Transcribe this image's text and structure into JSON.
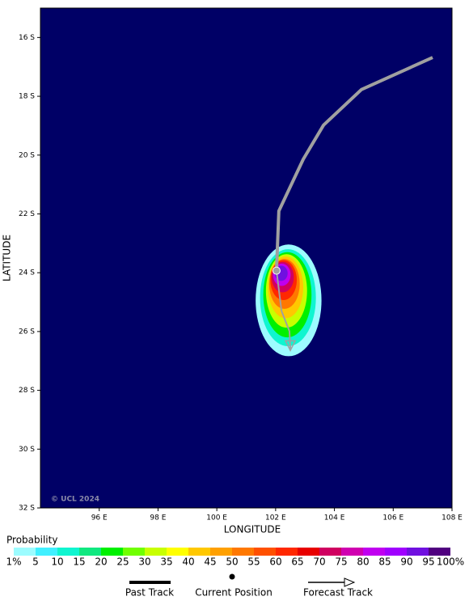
{
  "chart_data": {
    "type": "track_map",
    "xlabel": "LONGITUDE",
    "ylabel": "LATITUDE",
    "copyright": "© UCL 2024",
    "background": "#000066",
    "xlim": [
      94,
      108
    ],
    "ylim": [
      -32,
      -15
    ],
    "xticks": [
      {
        "value": 96,
        "label": "96 E"
      },
      {
        "value": 98,
        "label": "98 E"
      },
      {
        "value": 100,
        "label": "100 E"
      },
      {
        "value": 102,
        "label": "102 E"
      },
      {
        "value": 104,
        "label": "104 E"
      },
      {
        "value": 106,
        "label": "106 E"
      },
      {
        "value": 108,
        "label": "108 E"
      }
    ],
    "yticks": [
      {
        "value": -16,
        "label": "16 S"
      },
      {
        "value": -18,
        "label": "18 S"
      },
      {
        "value": -20,
        "label": "20 S"
      },
      {
        "value": -22,
        "label": "22 S"
      },
      {
        "value": -24,
        "label": "24 S"
      },
      {
        "value": -26,
        "label": "26 S"
      },
      {
        "value": -28,
        "label": "28 S"
      },
      {
        "value": -30,
        "label": "30 S"
      },
      {
        "value": -32,
        "label": "32 S"
      }
    ],
    "contours": [
      {
        "level": 1,
        "lon": 102.44,
        "lat": -24.94,
        "rx": 1.12,
        "ry": 1.9
      },
      {
        "level": 10,
        "lon": 102.42,
        "lat": -24.85,
        "rx": 0.95,
        "ry": 1.65
      },
      {
        "level": 20,
        "lon": 102.4,
        "lat": -24.75,
        "rx": 0.82,
        "ry": 1.45
      },
      {
        "level": 30,
        "lon": 102.37,
        "lat": -24.62,
        "rx": 0.7,
        "ry": 1.25
      },
      {
        "level": 40,
        "lon": 102.34,
        "lat": -24.5,
        "rx": 0.6,
        "ry": 1.05
      },
      {
        "level": 50,
        "lon": 102.3,
        "lat": -24.38,
        "rx": 0.52,
        "ry": 0.85
      },
      {
        "level": 60,
        "lon": 102.27,
        "lat": -24.25,
        "rx": 0.45,
        "ry": 0.68
      },
      {
        "level": 70,
        "lon": 102.24,
        "lat": -24.15,
        "rx": 0.38,
        "ry": 0.52
      },
      {
        "level": 80,
        "lon": 102.21,
        "lat": -24.07,
        "rx": 0.3,
        "ry": 0.38
      },
      {
        "level": 90,
        "lon": 102.19,
        "lat": -24.02,
        "rx": 0.22,
        "ry": 0.26
      }
    ],
    "past_track": {
      "name": "Past Track",
      "color": "#a0a0a0",
      "lon": [
        107.34,
        104.92,
        103.63,
        102.94,
        102.11,
        102.03
      ],
      "lat": [
        -16.68,
        -17.77,
        -18.98,
        -20.14,
        -21.9,
        -23.93
      ]
    },
    "current_position": {
      "name": "Current Position",
      "lon": 102.03,
      "lat": -23.93
    },
    "forecast_track": {
      "name": "Forecast Track",
      "color": "#a0a0a0",
      "lon": [
        102.03,
        102.2,
        102.47,
        102.5
      ],
      "lat": [
        -23.93,
        -25.3,
        -25.99,
        -26.59
      ]
    },
    "colorbar": {
      "title": "Probability",
      "ticks": [
        {
          "value": 1,
          "label": "1%"
        },
        5,
        10,
        15,
        20,
        25,
        30,
        35,
        40,
        45,
        50,
        55,
        60,
        65,
        70,
        75,
        80,
        85,
        90,
        95,
        {
          "value": 100,
          "label": "100%"
        }
      ],
      "colors": [
        "#9cfcff",
        "#40f0ff",
        "#10f5d0",
        "#10e880",
        "#00f000",
        "#70ff00",
        "#c8ff00",
        "#ffff00",
        "#ffc800",
        "#ffa000",
        "#ff7800",
        "#ff5000",
        "#ff2800",
        "#e80000",
        "#d00060",
        "#d000b0",
        "#c000f0",
        "#a000ff",
        "#7010e0",
        "#500080"
      ]
    }
  }
}
